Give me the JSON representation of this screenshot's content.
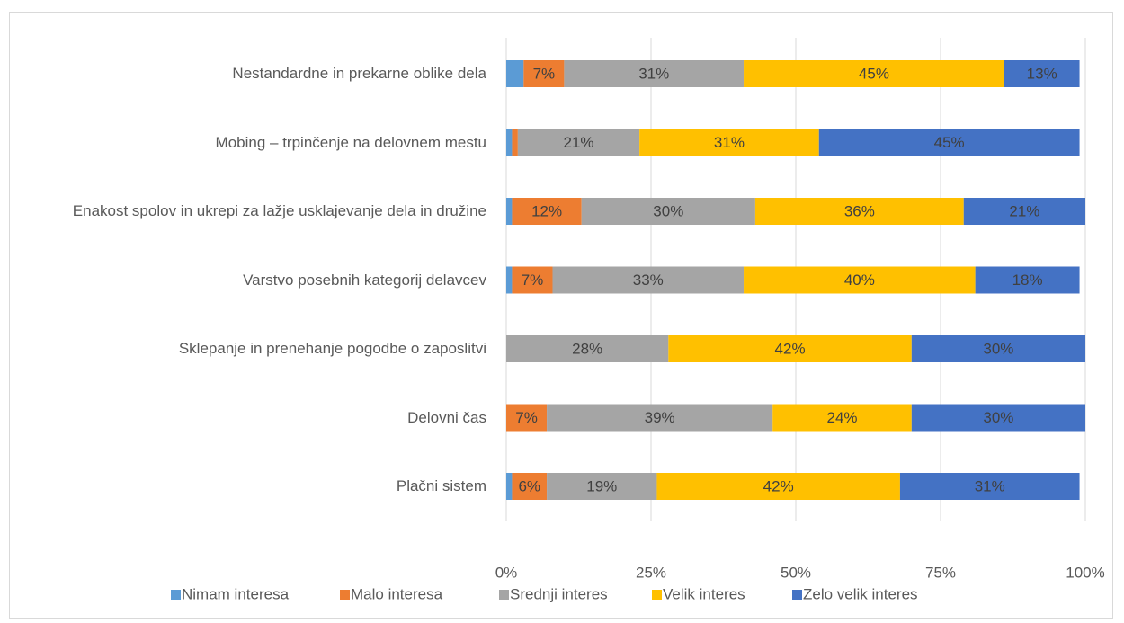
{
  "chart_data": {
    "type": "stacked-bar-horizontal",
    "categories": [
      "Nestandardne in prekarne oblike dela",
      "Mobing – trpinčenje na delovnem mestu",
      "Enakost spolov in ukrepi za lažje usklajevanje dela in družine",
      "Varstvo posebnih kategorij delavcev",
      "Sklepanje in prenehanje pogodbe o zaposlitvi",
      "Delovni čas",
      "Plačni sistem"
    ],
    "series": [
      {
        "name": "Nimam interesa",
        "color": "#5b9bd5",
        "values": [
          3,
          1,
          1,
          1,
          0,
          0,
          1
        ]
      },
      {
        "name": "Malo interesa",
        "color": "#ed7d31",
        "values": [
          7,
          1,
          12,
          7,
          0,
          7,
          6
        ],
        "value_labels": [
          "7%",
          null,
          "12%",
          "7%",
          null,
          "7%",
          "6%"
        ]
      },
      {
        "name": "Srednji interes",
        "color": "#a5a5a5",
        "values": [
          31,
          21,
          30,
          33,
          28,
          39,
          19
        ],
        "value_labels": [
          "31%",
          "21%",
          "30%",
          "33%",
          "28%",
          "39%",
          "19%"
        ]
      },
      {
        "name": "Velik interes",
        "color": "#ffc000",
        "values": [
          45,
          31,
          36,
          40,
          42,
          24,
          42
        ],
        "value_labels": [
          "45%",
          "31%",
          "36%",
          "40%",
          "42%",
          "24%",
          "42%"
        ]
      },
      {
        "name": "Zelo velik interes",
        "color": "#4472c4",
        "values": [
          13,
          45,
          21,
          18,
          30,
          30,
          31
        ],
        "value_labels": [
          "13%",
          "45%",
          "21%",
          "18%",
          "30%",
          "30%",
          "31%"
        ]
      }
    ],
    "xlim": [
      0,
      100
    ],
    "xticks": [
      {
        "value": 0,
        "label": "0%"
      },
      {
        "value": 25,
        "label": "25%"
      },
      {
        "value": 50,
        "label": "50%"
      },
      {
        "value": 75,
        "label": "75%"
      },
      {
        "value": 100,
        "label": "100%"
      }
    ],
    "grid": true,
    "legend": "bottom"
  }
}
